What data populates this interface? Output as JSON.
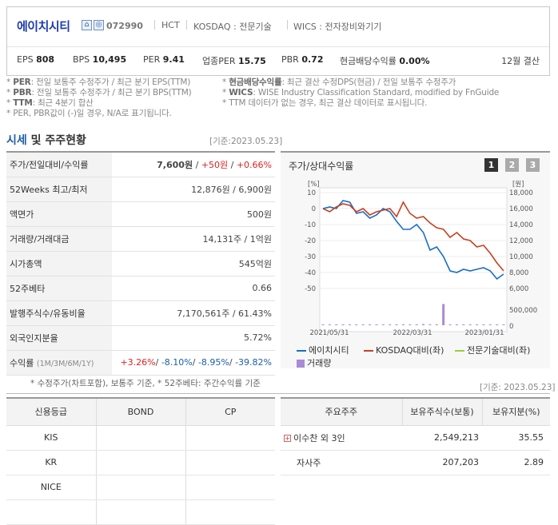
{
  "header": {
    "company": "에이치시티",
    "code": "072990",
    "ticker": "HCT",
    "market": "KOSDAQ : 전문기술",
    "wics": "WICS : 전자장비와기기",
    "metrics": [
      {
        "label": "EPS",
        "value": "808"
      },
      {
        "label": "BPS",
        "value": "10,495"
      },
      {
        "label": "PER",
        "value": "9.41"
      },
      {
        "label": "업종PER",
        "value": "15.75"
      },
      {
        "label": "PBR",
        "value": "0.72"
      },
      {
        "label": "현금배당수익률",
        "value": "0.00%"
      }
    ],
    "settlement": "12월 결산"
  },
  "notes": {
    "left": [
      {
        "key": "PER",
        "text": ": 전일 보통주 수정주가 / 최근 분기 EPS(TTM)"
      },
      {
        "key": "PBR",
        "text": ": 전일 보통주 수정주가 / 최근 분기 BPS(TTM)"
      },
      {
        "key": "TTM",
        "text": ": 최근 4분기 합산"
      },
      {
        "key": "",
        "text": "PER, PBR값이 (-)일 경우, N/A로 표기됩니다."
      }
    ],
    "right": [
      {
        "key": "현금배당수익률",
        "text": ": 최근 결산 수정DPS(현금) / 전일 보통주 수정주가"
      },
      {
        "key": "WICS",
        "text": ": WISE Industry Classification Standard, modified by FnGuide"
      },
      {
        "key": "",
        "text": "TTM 데이터가 없는 경우, 최근 결산 데이터로 표시됩니다."
      }
    ]
  },
  "quote_section": {
    "title_a": "시세",
    "title_b": " 및 주주현황",
    "basis": "[기준:2023.05.23]",
    "rows": [
      {
        "label": "주가/전일대비/수익률",
        "value": "7,600원 / +50원 / +0.66%"
      },
      {
        "label": "52Weeks 최고/최저",
        "value": "12,876원 / 6,900원"
      },
      {
        "label": "액면가",
        "value": "500원"
      },
      {
        "label": "거래량/거래대금",
        "value": "14,131주 / 1억원"
      },
      {
        "label": "시가총액",
        "value": "545억원"
      },
      {
        "label": "52주베타",
        "value": "0.66"
      },
      {
        "label": "발행주식수/유동비율",
        "value": "7,170,561주 / 61.43%"
      },
      {
        "label": "외국인지분율",
        "value": "5.72%"
      }
    ],
    "price": "7,600원",
    "change": "+50원",
    "change_pct": "+0.66%",
    "returns_label": "수익률",
    "returns_sub": "(1M/3M/6M/1Y)",
    "returns": [
      "+3.26%",
      "-8.10%",
      "-8.95%",
      "-39.82%"
    ],
    "footnote": "* 수정주가(차트포함), 보통주 기준, * 52주베타: 주간수익률 기준"
  },
  "chart_panel": {
    "title": "주가/상대수익률",
    "pages": [
      "1",
      "2",
      "3"
    ],
    "left_unit": "[%]",
    "right_unit": "[원]",
    "vol_labels": [
      "500,000",
      "0"
    ]
  },
  "chart_data": {
    "type": "line",
    "x_labels": [
      "2021/05/31",
      "2022/03/31",
      "2023/01/31"
    ],
    "left_axis": {
      "ticks": [
        10,
        0,
        -10,
        -20,
        -30,
        -40,
        -50
      ],
      "ylim": [
        -50,
        10
      ]
    },
    "right_axis": {
      "ticks": [
        "18,000",
        "16,000",
        "14,000",
        "12,000",
        "10,000",
        "8,000",
        "6,000"
      ],
      "ylim": [
        6000,
        18000
      ]
    },
    "series": [
      {
        "name": "에이치시티",
        "color": "#1a6dc9",
        "values": [
          0,
          1,
          0,
          5,
          4,
          -3,
          -2,
          -6,
          -4,
          0,
          -2,
          -8,
          -13,
          -13,
          -10,
          -15,
          -26,
          -24,
          -30,
          -39,
          -40,
          -38,
          -39,
          -38,
          -37,
          -39,
          -44,
          -41
        ]
      },
      {
        "name": "KOSDAQ대비(좌)",
        "color": "#c8401e",
        "values": [
          0,
          -2,
          1,
          3,
          2,
          -2,
          0,
          -4,
          -2,
          -1,
          0,
          -5,
          4,
          -3,
          -6,
          -5,
          -9,
          -12,
          -13,
          -18,
          -15,
          -19,
          -20,
          -24,
          -23,
          -28,
          -34,
          -39
        ]
      },
      {
        "name": "전문기술대비(좌)",
        "color": "#9ccc3c",
        "values": []
      },
      {
        "name": "거래량",
        "color": "#a98ad8",
        "values": [
          2000,
          3000,
          1500,
          1000,
          1800,
          2500,
          3500,
          2000,
          1500,
          4000,
          3000,
          2000,
          1500,
          3000,
          2500,
          6000,
          2000,
          3500,
          115000,
          3000,
          2000,
          1500,
          2500,
          2000,
          1500,
          1800,
          2000,
          1500
        ]
      }
    ]
  },
  "credit_table": {
    "headers": [
      "신용등급",
      "BOND",
      "CP"
    ],
    "rows": [
      "KIS",
      "KR",
      "NICE",
      ""
    ]
  },
  "holder_section": {
    "basis": "[기준: 2023.05.23]",
    "headers": [
      "주요주주",
      "보유주식수(보통)",
      "보유지분(%)"
    ],
    "rows": [
      {
        "name": "이수찬 외 3인",
        "shares": "2,549,213",
        "pct": "35.55"
      },
      {
        "name": "자사주",
        "shares": "207,203",
        "pct": "2.89"
      }
    ]
  }
}
